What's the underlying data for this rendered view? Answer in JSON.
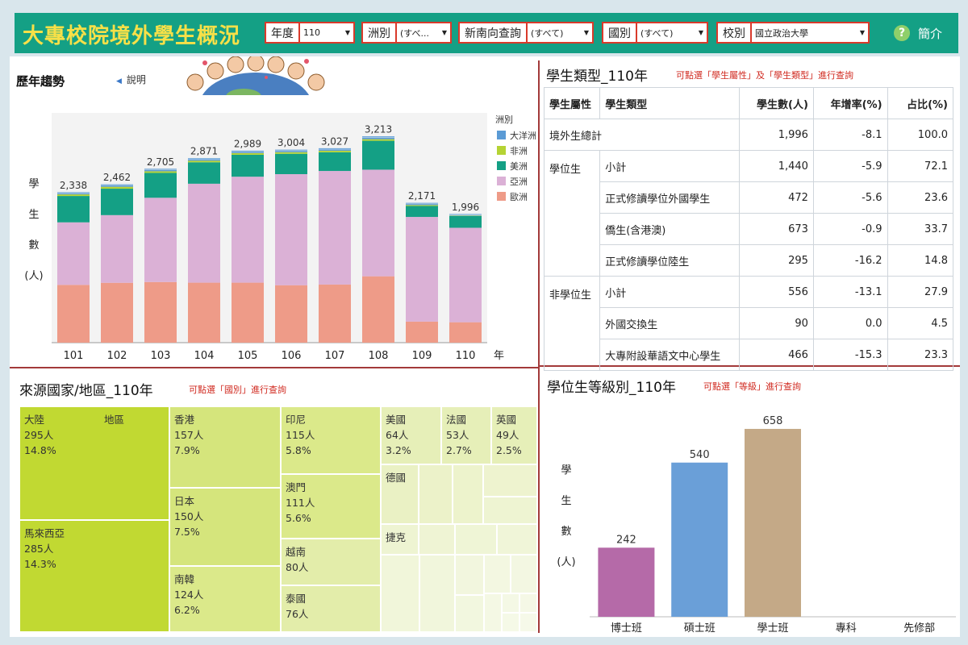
{
  "header": {
    "title": "大專校院境外學生概況",
    "filters": [
      {
        "label": "年度",
        "value": "110"
      },
      {
        "label": "洲別",
        "value": "(すべ..."
      },
      {
        "label": "新南向查詢",
        "value": "(すべて)"
      },
      {
        "label": "國別",
        "value": "(すべて)"
      },
      {
        "label": "校別",
        "value": "國立政治大學"
      }
    ],
    "help_icon": "?",
    "intro_label": "簡介"
  },
  "trend": {
    "title": "歷年趨勢",
    "explain_label": "說明",
    "ylabel_chars": [
      "學",
      "生",
      "數",
      "(人)"
    ],
    "x_unit": "年",
    "legend_title": "洲別"
  },
  "category": {
    "title": "學生類型_110年",
    "hint": "可點選「學生屬性」及「學生類型」進行查詢",
    "headers": [
      "學生屬性",
      "學生類型",
      "學生數(人)",
      "年增率(%)",
      "占比(%)"
    ],
    "total": {
      "label": "境外生總計",
      "count": "1,996",
      "growth": "-8.1",
      "share": "100.0"
    },
    "degree": {
      "label": "學位生",
      "rows": [
        {
          "type": "小計",
          "count": "1,440",
          "growth": "-5.9",
          "share": "72.1"
        },
        {
          "type": "正式修讀學位外國學生",
          "count": "472",
          "growth": "-5.6",
          "share": "23.6"
        },
        {
          "type": "僑生(含港澳)",
          "count": "673",
          "growth": "-0.9",
          "share": "33.7"
        },
        {
          "type": "正式修讀學位陸生",
          "count": "295",
          "growth": "-16.2",
          "share": "14.8"
        }
      ]
    },
    "nondegree": {
      "label": "非學位生",
      "rows": [
        {
          "type": "小計",
          "count": "556",
          "growth": "-13.1",
          "share": "27.9"
        },
        {
          "type": "外國交換生",
          "count": "90",
          "growth": "0.0",
          "share": "4.5"
        },
        {
          "type": "大專附設華語文中心學生",
          "count": "466",
          "growth": "-15.3",
          "share": "23.3"
        }
      ]
    }
  },
  "source": {
    "title": "來源國家/地區_110年",
    "hint": "可點選「國別」進行查詢"
  },
  "level": {
    "title": "學位生等級別_110年",
    "hint": "可點選「等級」進行查詢",
    "ylabel_chars": [
      "學",
      "生",
      "數",
      "(人)"
    ]
  },
  "colors": {
    "header_bg": "#14a085",
    "title_yellow": "#f7e048",
    "oceania": "#5b9bd5",
    "africa": "#b5d334",
    "america": "#14a085",
    "asia": "#dbb1d6",
    "europe": "#ee9b88",
    "phd": "#b56aa8",
    "master": "#6a9fd8",
    "bachelor": "#c4a987"
  },
  "chart_data": [
    {
      "type": "bar",
      "stacked": true,
      "categories": [
        "101",
        "102",
        "103",
        "104",
        "105",
        "106",
        "107",
        "108",
        "109",
        "110"
      ],
      "totals": [
        2338,
        2462,
        2705,
        2871,
        2989,
        3004,
        3027,
        3213,
        2171,
        1996
      ],
      "total_labels": [
        "2,338",
        "2,462",
        "2,705",
        "2,871",
        "2,989",
        "3,004",
        "3,027",
        "3,213",
        "2,171",
        "1,996"
      ],
      "series": [
        {
          "name": "歐洲",
          "color": "#ee9b88",
          "values": [
            905,
            938,
            950,
            940,
            940,
            900,
            910,
            1040,
            330,
            320
          ]
        },
        {
          "name": "亞洲",
          "color": "#dbb1d6",
          "values": [
            980,
            1060,
            1320,
            1550,
            1660,
            1740,
            1780,
            1670,
            1640,
            1480
          ]
        },
        {
          "name": "美洲",
          "color": "#14a085",
          "values": [
            413,
            414,
            390,
            336,
            344,
            319,
            293,
            453,
            171,
            186
          ]
        },
        {
          "name": "非洲",
          "color": "#b5d334",
          "values": [
            25,
            30,
            25,
            25,
            25,
            25,
            24,
            25,
            15,
            6
          ]
        },
        {
          "name": "大洋洲",
          "color": "#5b9bd5",
          "values": [
            15,
            20,
            20,
            20,
            20,
            20,
            20,
            25,
            15,
            4
          ]
        }
      ],
      "x_unit": "年",
      "ylim": [
        0,
        3600
      ],
      "legend_title": "洲別",
      "legend_position": "right"
    },
    {
      "type": "bar",
      "categories": [
        "博士班",
        "碩士班",
        "學士班",
        "專科",
        "先修部"
      ],
      "values": [
        242,
        540,
        658,
        null,
        null
      ],
      "value_labels": [
        "242",
        "540",
        "658",
        "",
        ""
      ],
      "colors": [
        "#b56aa8",
        "#6a9fd8",
        "#c4a987",
        "#cccccc",
        "#cccccc"
      ],
      "ylim": [
        0,
        720
      ]
    },
    {
      "type": "treemap",
      "items": [
        {
          "name": "大陸",
          "note": "地區",
          "count": "295人",
          "share": "14.8%",
          "value": 295
        },
        {
          "name": "馬來西亞",
          "count": "285人",
          "share": "14.3%",
          "value": 285
        },
        {
          "name": "香港",
          "count": "157人",
          "share": "7.9%",
          "value": 157
        },
        {
          "name": "日本",
          "count": "150人",
          "share": "7.5%",
          "value": 150
        },
        {
          "name": "南韓",
          "count": "124人",
          "share": "6.2%",
          "value": 124
        },
        {
          "name": "印尼",
          "count": "115人",
          "share": "5.8%",
          "value": 115
        },
        {
          "name": "澳門",
          "count": "111人",
          "share": "5.6%",
          "value": 111
        },
        {
          "name": "越南",
          "count": "80人",
          "value": 80
        },
        {
          "name": "泰國",
          "count": "76人",
          "value": 76
        },
        {
          "name": "美國",
          "count": "64人",
          "share": "3.2%",
          "value": 64
        },
        {
          "name": "法國",
          "count": "53人",
          "share": "2.7%",
          "value": 53
        },
        {
          "name": "英國",
          "count": "49人",
          "share": "2.5%",
          "value": 49
        },
        {
          "name": "德國"
        },
        {
          "name": "捷克"
        }
      ]
    }
  ]
}
